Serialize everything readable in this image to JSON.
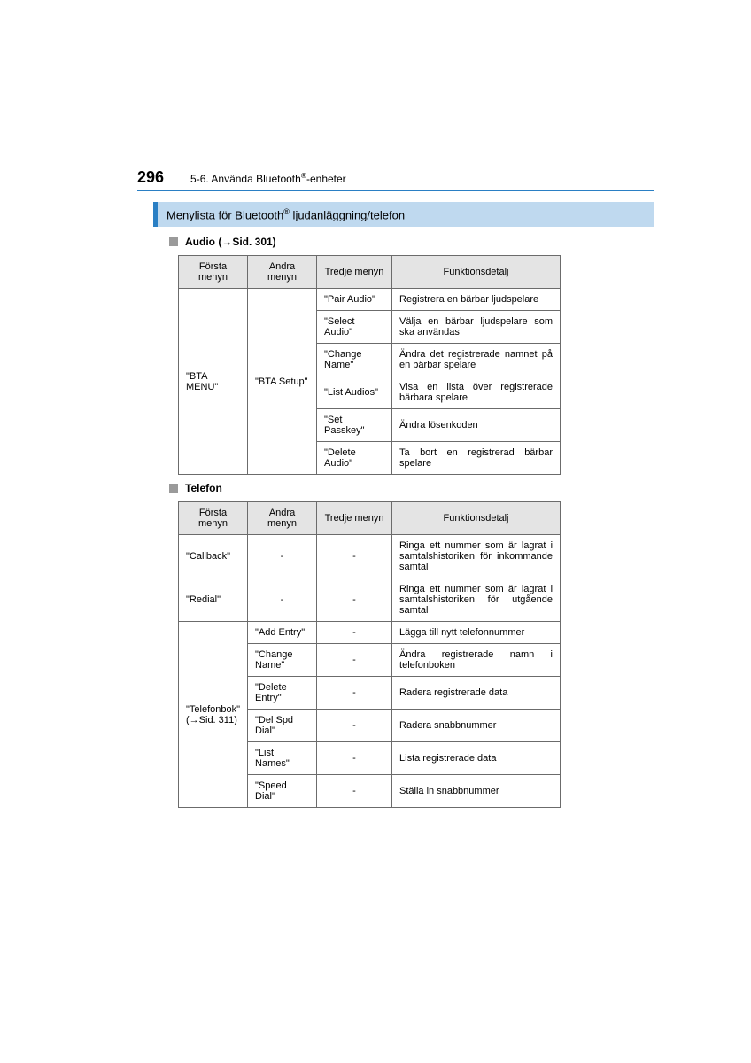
{
  "header": {
    "page_number": "296",
    "section_path_prefix": "5-6. Använda Bluetooth",
    "section_path_suffix": "-enheter"
  },
  "banner": {
    "prefix": "Menylista för Bluetooth",
    "suffix": " ljudanläggning/telefon"
  },
  "audio_section": {
    "heading": "Audio (→Sid. 301)",
    "columns": [
      "Första menyn",
      "Andra menyn",
      "Tredje menyn",
      "Funktionsdetalj"
    ],
    "first_menu": "\"BTA MENU\"",
    "second_menu": "\"BTA Setup\"",
    "rows": [
      {
        "third": "\"Pair Audio\"",
        "detail": "Registrera en bärbar ljudspelare"
      },
      {
        "third": "\"Select Audio\"",
        "detail": "Välja en bärbar ljudspelare som ska användas"
      },
      {
        "third": "\"Change Name\"",
        "detail": "Ändra det registrerade namnet på en bärbar spelare"
      },
      {
        "third": "\"List Audios\"",
        "detail": "Visa en lista över registrerade bärbara spelare"
      },
      {
        "third": "\"Set Passkey\"",
        "detail": "Ändra lösenkoden"
      },
      {
        "third": "\"Delete Audio\"",
        "detail": "Ta bort en registrerad bärbar spelare"
      }
    ]
  },
  "telefon_section": {
    "heading": "Telefon",
    "columns": [
      "Första menyn",
      "Andra menyn",
      "Tredje menyn",
      "Funktionsdetalj"
    ],
    "row_callback": {
      "first": "\"Callback\"",
      "second": "-",
      "third": "-",
      "detail": "Ringa ett nummer som är lagrat i samtalshistoriken för inkommande samtal"
    },
    "row_redial": {
      "first": "\"Redial\"",
      "second": "-",
      "third": "-",
      "detail": "Ringa ett nummer som är lagrat i samtalshistoriken för utgående samtal"
    },
    "telefonbok_label_line1": "\"Telefonbok\"",
    "telefonbok_label_line2": "(→Sid. 311)",
    "telefonbok_rows": [
      {
        "second": "\"Add Entry\"",
        "third": "-",
        "detail": "Lägga till nytt telefonnummer"
      },
      {
        "second": "\"Change Name\"",
        "third": "-",
        "detail": "Ändra registrerade namn i telefonboken"
      },
      {
        "second": "\"Delete Entry\"",
        "third": "-",
        "detail": "Radera registrerade data"
      },
      {
        "second": "\"Del Spd Dial\"",
        "third": "-",
        "detail": "Radera snabbnummer"
      },
      {
        "second": "\"List Names\"",
        "third": "-",
        "detail": "Lista registrerade data"
      },
      {
        "second": "\"Speed Dial\"",
        "third": "-",
        "detail": "Ställa in snabbnummer"
      }
    ]
  },
  "colors": {
    "banner_bg": "#bfd9ef",
    "banner_border": "#2a7fc4",
    "th_bg": "#e4e4e4",
    "border": "#6b6b6b"
  }
}
